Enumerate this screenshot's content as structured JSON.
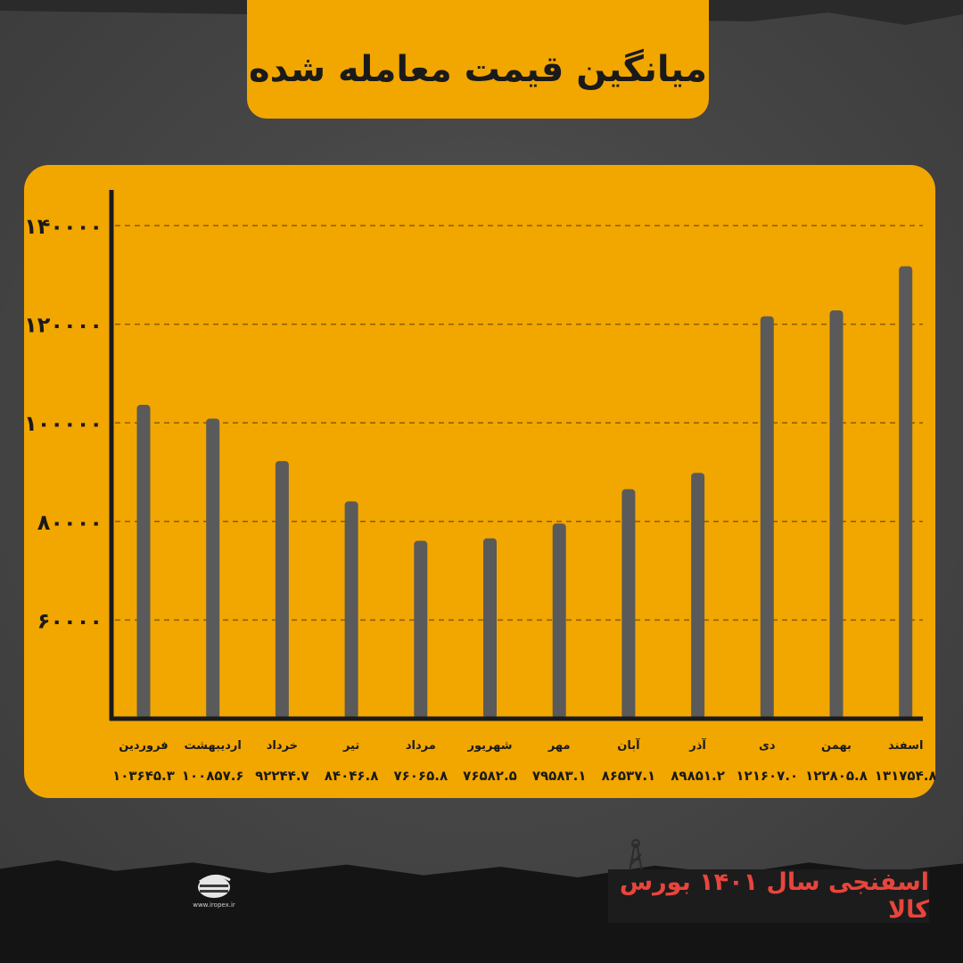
{
  "title": "میانگین قیمت معامله شده",
  "footer_text": "اسفنجی سال ۱۴۰۱ بورس کالا",
  "logo": {
    "name": "IROPEX",
    "url": "www.iropex.ir"
  },
  "colors": {
    "panel": "#f2a600",
    "bar": "#5a5a5a",
    "axis": "#1a1a1a",
    "footer_text": "#e8453c"
  },
  "chart_data": {
    "type": "bar",
    "title": "میانگین قیمت معامله شده",
    "xlabel": "",
    "ylabel": "",
    "ylim": [
      40000,
      140000
    ],
    "yticks": [
      "۶۰۰۰۰",
      "۸۰۰۰۰",
      "۱۰۰۰۰۰",
      "۱۲۰۰۰۰",
      "۱۴۰۰۰۰"
    ],
    "ytick_values": [
      60000,
      80000,
      100000,
      120000,
      140000
    ],
    "grid": true,
    "categories": [
      "فروردین",
      "اردیبهشت",
      "خرداد",
      "تیر",
      "مرداد",
      "شهریور",
      "مهر",
      "آبان",
      "آذر",
      "دی",
      "بهمن",
      "اسفند"
    ],
    "values": [
      103645.3,
      100857.6,
      92244.7,
      84046.8,
      76065.8,
      76582.5,
      79583.1,
      86537.1,
      89851.2,
      121607.0,
      122805.8,
      131754.8
    ],
    "value_labels": [
      "۱۰۳۶۴۵.۳",
      "۱۰۰۸۵۷.۶",
      "۹۲۲۴۴.۷",
      "۸۴۰۴۶.۸",
      "۷۶۰۶۵.۸",
      "۷۶۵۸۲.۵",
      "۷۹۵۸۳.۱",
      "۸۶۵۳۷.۱",
      "۸۹۸۵۱.۲",
      "۱۲۱۶۰۷.۰",
      "۱۲۲۸۰۵.۸",
      "۱۳۱۷۵۴.۸"
    ]
  }
}
